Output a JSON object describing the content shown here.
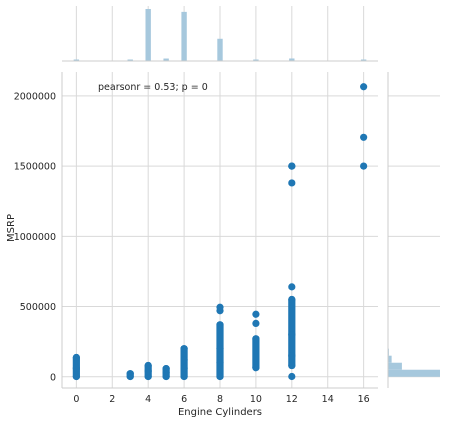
{
  "chart_data": {
    "type": "scatter",
    "title": "",
    "xlabel": "Engine Cylinders",
    "ylabel": "MSRP",
    "annotation": "pearsonr = 0.53; p = 0",
    "xlim": [
      -0.8,
      16.8
    ],
    "ylim": [
      -80000,
      2170000
    ],
    "xticks": [
      "0",
      "2",
      "4",
      "6",
      "8",
      "10",
      "12",
      "14",
      "16"
    ],
    "yticks": [
      "0",
      "500000",
      "1000000",
      "1500000",
      "2000000"
    ],
    "grid": true,
    "colors": {
      "points": "#1f77b4",
      "marginal": "#a6c8dd"
    },
    "series": [
      {
        "x": [
          0,
          0,
          0,
          3,
          3,
          4,
          4,
          4,
          5,
          5,
          5,
          6,
          6,
          6,
          6,
          8,
          8,
          8,
          8,
          8,
          8,
          10,
          10,
          10,
          10,
          12,
          12,
          12,
          12,
          12,
          12,
          12,
          12,
          12,
          16,
          16,
          16
        ],
        "y": [
          2000,
          60000,
          137000,
          2000,
          22000,
          2000,
          40000,
          80000,
          2000,
          30000,
          58000,
          2000,
          60000,
          120000,
          200000,
          2000,
          100000,
          200000,
          370000,
          470000,
          495000,
          65000,
          270000,
          380000,
          445000,
          2000,
          80000,
          150000,
          300000,
          550000,
          640000,
          1380000,
          1500000,
          1500000,
          1500000,
          1705000,
          2065000
        ],
        "ranges": [
          {
            "x": 0,
            "min": 2000,
            "max": 137000
          },
          {
            "x": 3,
            "min": 2000,
            "max": 22000
          },
          {
            "x": 4,
            "min": 2000,
            "max": 80000
          },
          {
            "x": 5,
            "min": 2000,
            "max": 58000
          },
          {
            "x": 6,
            "min": 2000,
            "max": 200000
          },
          {
            "x": 8,
            "min": 2000,
            "max": 370000
          },
          {
            "x": 10,
            "min": 65000,
            "max": 270000
          },
          {
            "x": 12,
            "min": 80000,
            "max": 550000
          }
        ]
      }
    ],
    "marginal_x": {
      "type": "histogram",
      "bins": [
        {
          "x": 0,
          "count": 56
        },
        {
          "x": 3,
          "count": 30
        },
        {
          "x": 4,
          "count": 4752
        },
        {
          "x": 5,
          "count": 225
        },
        {
          "x": 6,
          "count": 4489
        },
        {
          "x": 8,
          "count": 2031
        },
        {
          "x": 10,
          "count": 68
        },
        {
          "x": 12,
          "count": 230
        },
        {
          "x": 16,
          "count": 3
        }
      ]
    },
    "marginal_y": {
      "type": "histogram",
      "bins": [
        {
          "y": 0,
          "count": 8600
        },
        {
          "y": 50000,
          "count": 2300
        },
        {
          "y": 100000,
          "count": 600
        },
        {
          "y": 150000,
          "count": 150
        },
        {
          "y": 200000,
          "count": 70
        }
      ]
    }
  }
}
